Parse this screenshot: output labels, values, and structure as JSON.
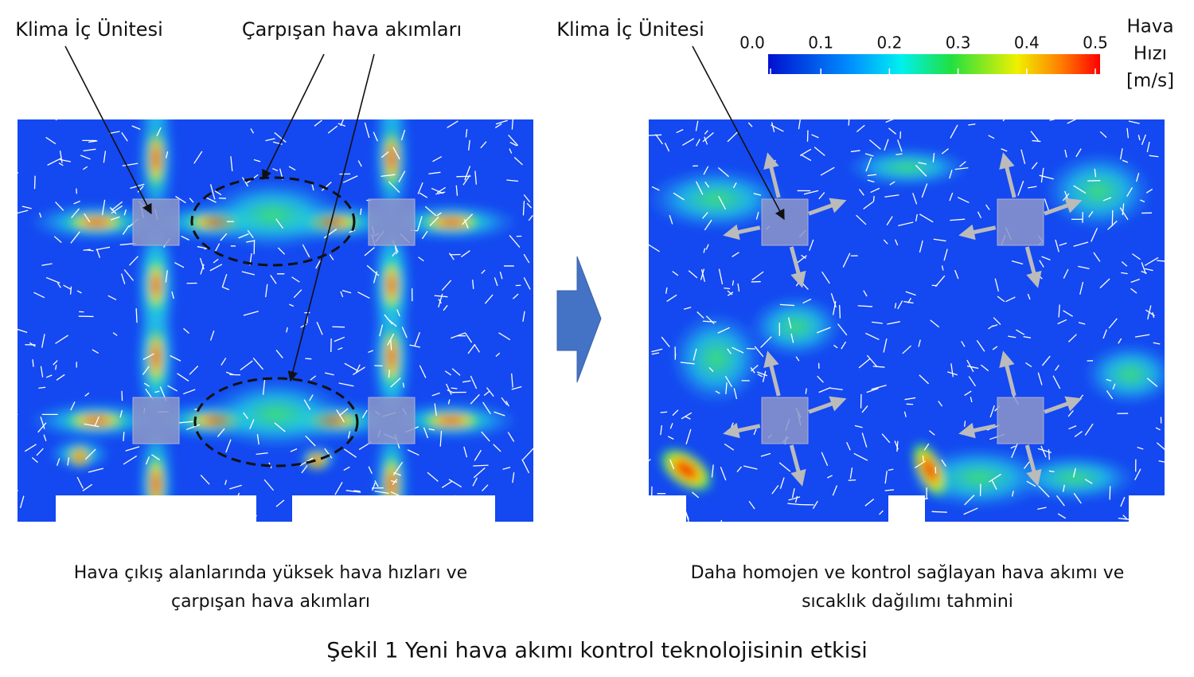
{
  "left_panel": {
    "unit_label": "Klima İç Ünitesi",
    "collision_label": "Çarpışan hava akımları",
    "caption": [
      "Hava çıkış alanlarında yüksek hava hızları ve",
      "çarpışan hava akımları"
    ]
  },
  "right_panel": {
    "unit_label": "Klima İç Ünitesi",
    "caption": [
      "Daha homojen ve kontrol sağlayan hava akımı ve",
      "sıcaklık dağılımı tahmini"
    ]
  },
  "colorbar": {
    "min": 0,
    "max": 0.5,
    "ticks": [
      {
        "value": 0,
        "label": "0.0"
      },
      0.1,
      0.2,
      0.3,
      0.4,
      0.5
    ],
    "title": [
      "Hava",
      "Hızı",
      "[m/s]"
    ]
  },
  "figure_caption": "Şekil 1 Yeni hava akımı kontrol teknolojisinin etkisi"
}
